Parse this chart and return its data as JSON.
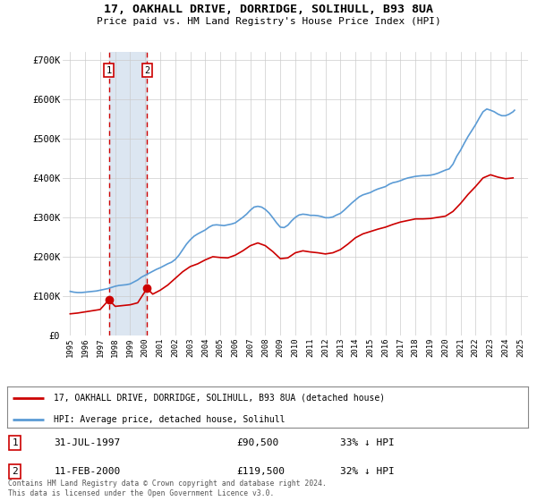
{
  "title": "17, OAKHALL DRIVE, DORRIDGE, SOLIHULL, B93 8UA",
  "subtitle": "Price paid vs. HM Land Registry's House Price Index (HPI)",
  "legend_line1": "17, OAKHALL DRIVE, DORRIDGE, SOLIHULL, B93 8UA (detached house)",
  "legend_line2": "HPI: Average price, detached house, Solihull",
  "transaction1_date": "31-JUL-1997",
  "transaction1_price": "£90,500",
  "transaction1_hpi": "33% ↓ HPI",
  "transaction1_year": 1997.58,
  "transaction1_value": 90500,
  "transaction2_date": "11-FEB-2000",
  "transaction2_price": "£119,500",
  "transaction2_hpi": "32% ↓ HPI",
  "transaction2_year": 2000.12,
  "transaction2_value": 119500,
  "hpi_color": "#5b9bd5",
  "price_color": "#cc0000",
  "marker_color": "#cc0000",
  "annotation_box_color": "#cc0000",
  "shade_color": "#dce6f1",
  "grid_color": "#cccccc",
  "background_color": "#ffffff",
  "ylim": [
    0,
    720000
  ],
  "xlim_start": 1994.5,
  "xlim_end": 2025.5,
  "yticks": [
    0,
    100000,
    200000,
    300000,
    400000,
    500000,
    600000,
    700000
  ],
  "ytick_labels": [
    "£0",
    "£100K",
    "£200K",
    "£300K",
    "£400K",
    "£500K",
    "£600K",
    "£700K"
  ],
  "xticks": [
    1995,
    1996,
    1997,
    1998,
    1999,
    2000,
    2001,
    2002,
    2003,
    2004,
    2005,
    2006,
    2007,
    2008,
    2009,
    2010,
    2011,
    2012,
    2013,
    2014,
    2015,
    2016,
    2017,
    2018,
    2019,
    2020,
    2021,
    2022,
    2023,
    2024,
    2025
  ],
  "copyright_text": "Contains HM Land Registry data © Crown copyright and database right 2024.\nThis data is licensed under the Open Government Licence v3.0.",
  "hpi_data": [
    [
      1995.0,
      112000
    ],
    [
      1995.25,
      110000
    ],
    [
      1995.5,
      109000
    ],
    [
      1995.75,
      109000
    ],
    [
      1996.0,
      110000
    ],
    [
      1996.25,
      111000
    ],
    [
      1996.5,
      112000
    ],
    [
      1996.75,
      113000
    ],
    [
      1997.0,
      115000
    ],
    [
      1997.25,
      117000
    ],
    [
      1997.5,
      119000
    ],
    [
      1997.75,
      122000
    ],
    [
      1998.0,
      125000
    ],
    [
      1998.25,
      127000
    ],
    [
      1998.5,
      128000
    ],
    [
      1998.75,
      129000
    ],
    [
      1999.0,
      131000
    ],
    [
      1999.25,
      136000
    ],
    [
      1999.5,
      141000
    ],
    [
      1999.75,
      148000
    ],
    [
      2000.0,
      153000
    ],
    [
      2000.25,
      158000
    ],
    [
      2000.5,
      163000
    ],
    [
      2000.75,
      168000
    ],
    [
      2001.0,
      172000
    ],
    [
      2001.25,
      177000
    ],
    [
      2001.5,
      182000
    ],
    [
      2001.75,
      186000
    ],
    [
      2002.0,
      193000
    ],
    [
      2002.25,
      204000
    ],
    [
      2002.5,
      218000
    ],
    [
      2002.75,
      232000
    ],
    [
      2003.0,
      243000
    ],
    [
      2003.25,
      252000
    ],
    [
      2003.5,
      258000
    ],
    [
      2003.75,
      263000
    ],
    [
      2004.0,
      268000
    ],
    [
      2004.25,
      275000
    ],
    [
      2004.5,
      280000
    ],
    [
      2004.75,
      281000
    ],
    [
      2005.0,
      280000
    ],
    [
      2005.25,
      279000
    ],
    [
      2005.5,
      281000
    ],
    [
      2005.75,
      283000
    ],
    [
      2006.0,
      286000
    ],
    [
      2006.25,
      293000
    ],
    [
      2006.5,
      300000
    ],
    [
      2006.75,
      308000
    ],
    [
      2007.0,
      318000
    ],
    [
      2007.25,
      326000
    ],
    [
      2007.5,
      328000
    ],
    [
      2007.75,
      326000
    ],
    [
      2008.0,
      320000
    ],
    [
      2008.25,
      311000
    ],
    [
      2008.5,
      299000
    ],
    [
      2008.75,
      286000
    ],
    [
      2009.0,
      275000
    ],
    [
      2009.25,
      274000
    ],
    [
      2009.5,
      280000
    ],
    [
      2009.75,
      291000
    ],
    [
      2010.0,
      300000
    ],
    [
      2010.25,
      306000
    ],
    [
      2010.5,
      308000
    ],
    [
      2010.75,
      307000
    ],
    [
      2011.0,
      305000
    ],
    [
      2011.25,
      305000
    ],
    [
      2011.5,
      304000
    ],
    [
      2011.75,
      302000
    ],
    [
      2012.0,
      299000
    ],
    [
      2012.25,
      299000
    ],
    [
      2012.5,
      301000
    ],
    [
      2012.75,
      306000
    ],
    [
      2013.0,
      310000
    ],
    [
      2013.25,
      318000
    ],
    [
      2013.5,
      327000
    ],
    [
      2013.75,
      336000
    ],
    [
      2014.0,
      344000
    ],
    [
      2014.25,
      352000
    ],
    [
      2014.5,
      357000
    ],
    [
      2014.75,
      360000
    ],
    [
      2015.0,
      363000
    ],
    [
      2015.25,
      368000
    ],
    [
      2015.5,
      372000
    ],
    [
      2015.75,
      375000
    ],
    [
      2016.0,
      378000
    ],
    [
      2016.25,
      384000
    ],
    [
      2016.5,
      388000
    ],
    [
      2016.75,
      390000
    ],
    [
      2017.0,
      393000
    ],
    [
      2017.25,
      397000
    ],
    [
      2017.5,
      400000
    ],
    [
      2017.75,
      402000
    ],
    [
      2018.0,
      404000
    ],
    [
      2018.25,
      405000
    ],
    [
      2018.5,
      406000
    ],
    [
      2018.75,
      406000
    ],
    [
      2019.0,
      407000
    ],
    [
      2019.25,
      409000
    ],
    [
      2019.5,
      412000
    ],
    [
      2019.75,
      416000
    ],
    [
      2020.0,
      420000
    ],
    [
      2020.25,
      423000
    ],
    [
      2020.5,
      435000
    ],
    [
      2020.75,
      455000
    ],
    [
      2021.0,
      470000
    ],
    [
      2021.25,
      488000
    ],
    [
      2021.5,
      505000
    ],
    [
      2021.75,
      520000
    ],
    [
      2022.0,
      535000
    ],
    [
      2022.25,
      552000
    ],
    [
      2022.5,
      568000
    ],
    [
      2022.75,
      575000
    ],
    [
      2023.0,
      572000
    ],
    [
      2023.25,
      568000
    ],
    [
      2023.5,
      562000
    ],
    [
      2023.75,
      558000
    ],
    [
      2024.0,
      558000
    ],
    [
      2024.25,
      562000
    ],
    [
      2024.5,
      568000
    ],
    [
      2024.6,
      572000
    ]
  ],
  "price_data": [
    [
      1995.0,
      55000
    ],
    [
      1995.5,
      57000
    ],
    [
      1996.0,
      60000
    ],
    [
      1996.5,
      63000
    ],
    [
      1997.0,
      66000
    ],
    [
      1997.58,
      90500
    ],
    [
      1998.0,
      74000
    ],
    [
      1998.5,
      76000
    ],
    [
      1999.0,
      78000
    ],
    [
      1999.5,
      83000
    ],
    [
      2000.12,
      119500
    ],
    [
      2000.5,
      105000
    ],
    [
      2001.0,
      115000
    ],
    [
      2001.5,
      128000
    ],
    [
      2002.0,
      145000
    ],
    [
      2002.5,
      162000
    ],
    [
      2003.0,
      175000
    ],
    [
      2003.5,
      182000
    ],
    [
      2004.0,
      192000
    ],
    [
      2004.5,
      200000
    ],
    [
      2005.0,
      198000
    ],
    [
      2005.5,
      197000
    ],
    [
      2006.0,
      204000
    ],
    [
      2006.5,
      215000
    ],
    [
      2007.0,
      228000
    ],
    [
      2007.5,
      235000
    ],
    [
      2008.0,
      228000
    ],
    [
      2008.5,
      213000
    ],
    [
      2009.0,
      195000
    ],
    [
      2009.5,
      197000
    ],
    [
      2010.0,
      210000
    ],
    [
      2010.5,
      215000
    ],
    [
      2011.0,
      212000
    ],
    [
      2011.5,
      210000
    ],
    [
      2012.0,
      207000
    ],
    [
      2012.5,
      210000
    ],
    [
      2013.0,
      218000
    ],
    [
      2013.5,
      232000
    ],
    [
      2014.0,
      248000
    ],
    [
      2014.5,
      258000
    ],
    [
      2015.0,
      264000
    ],
    [
      2015.5,
      270000
    ],
    [
      2016.0,
      275000
    ],
    [
      2016.5,
      282000
    ],
    [
      2017.0,
      288000
    ],
    [
      2017.5,
      292000
    ],
    [
      2018.0,
      296000
    ],
    [
      2018.5,
      296000
    ],
    [
      2019.0,
      297000
    ],
    [
      2019.5,
      300000
    ],
    [
      2020.0,
      303000
    ],
    [
      2020.5,
      315000
    ],
    [
      2021.0,
      335000
    ],
    [
      2021.5,
      358000
    ],
    [
      2022.0,
      378000
    ],
    [
      2022.5,
      400000
    ],
    [
      2023.0,
      408000
    ],
    [
      2023.5,
      402000
    ],
    [
      2024.0,
      398000
    ],
    [
      2024.5,
      400000
    ]
  ]
}
